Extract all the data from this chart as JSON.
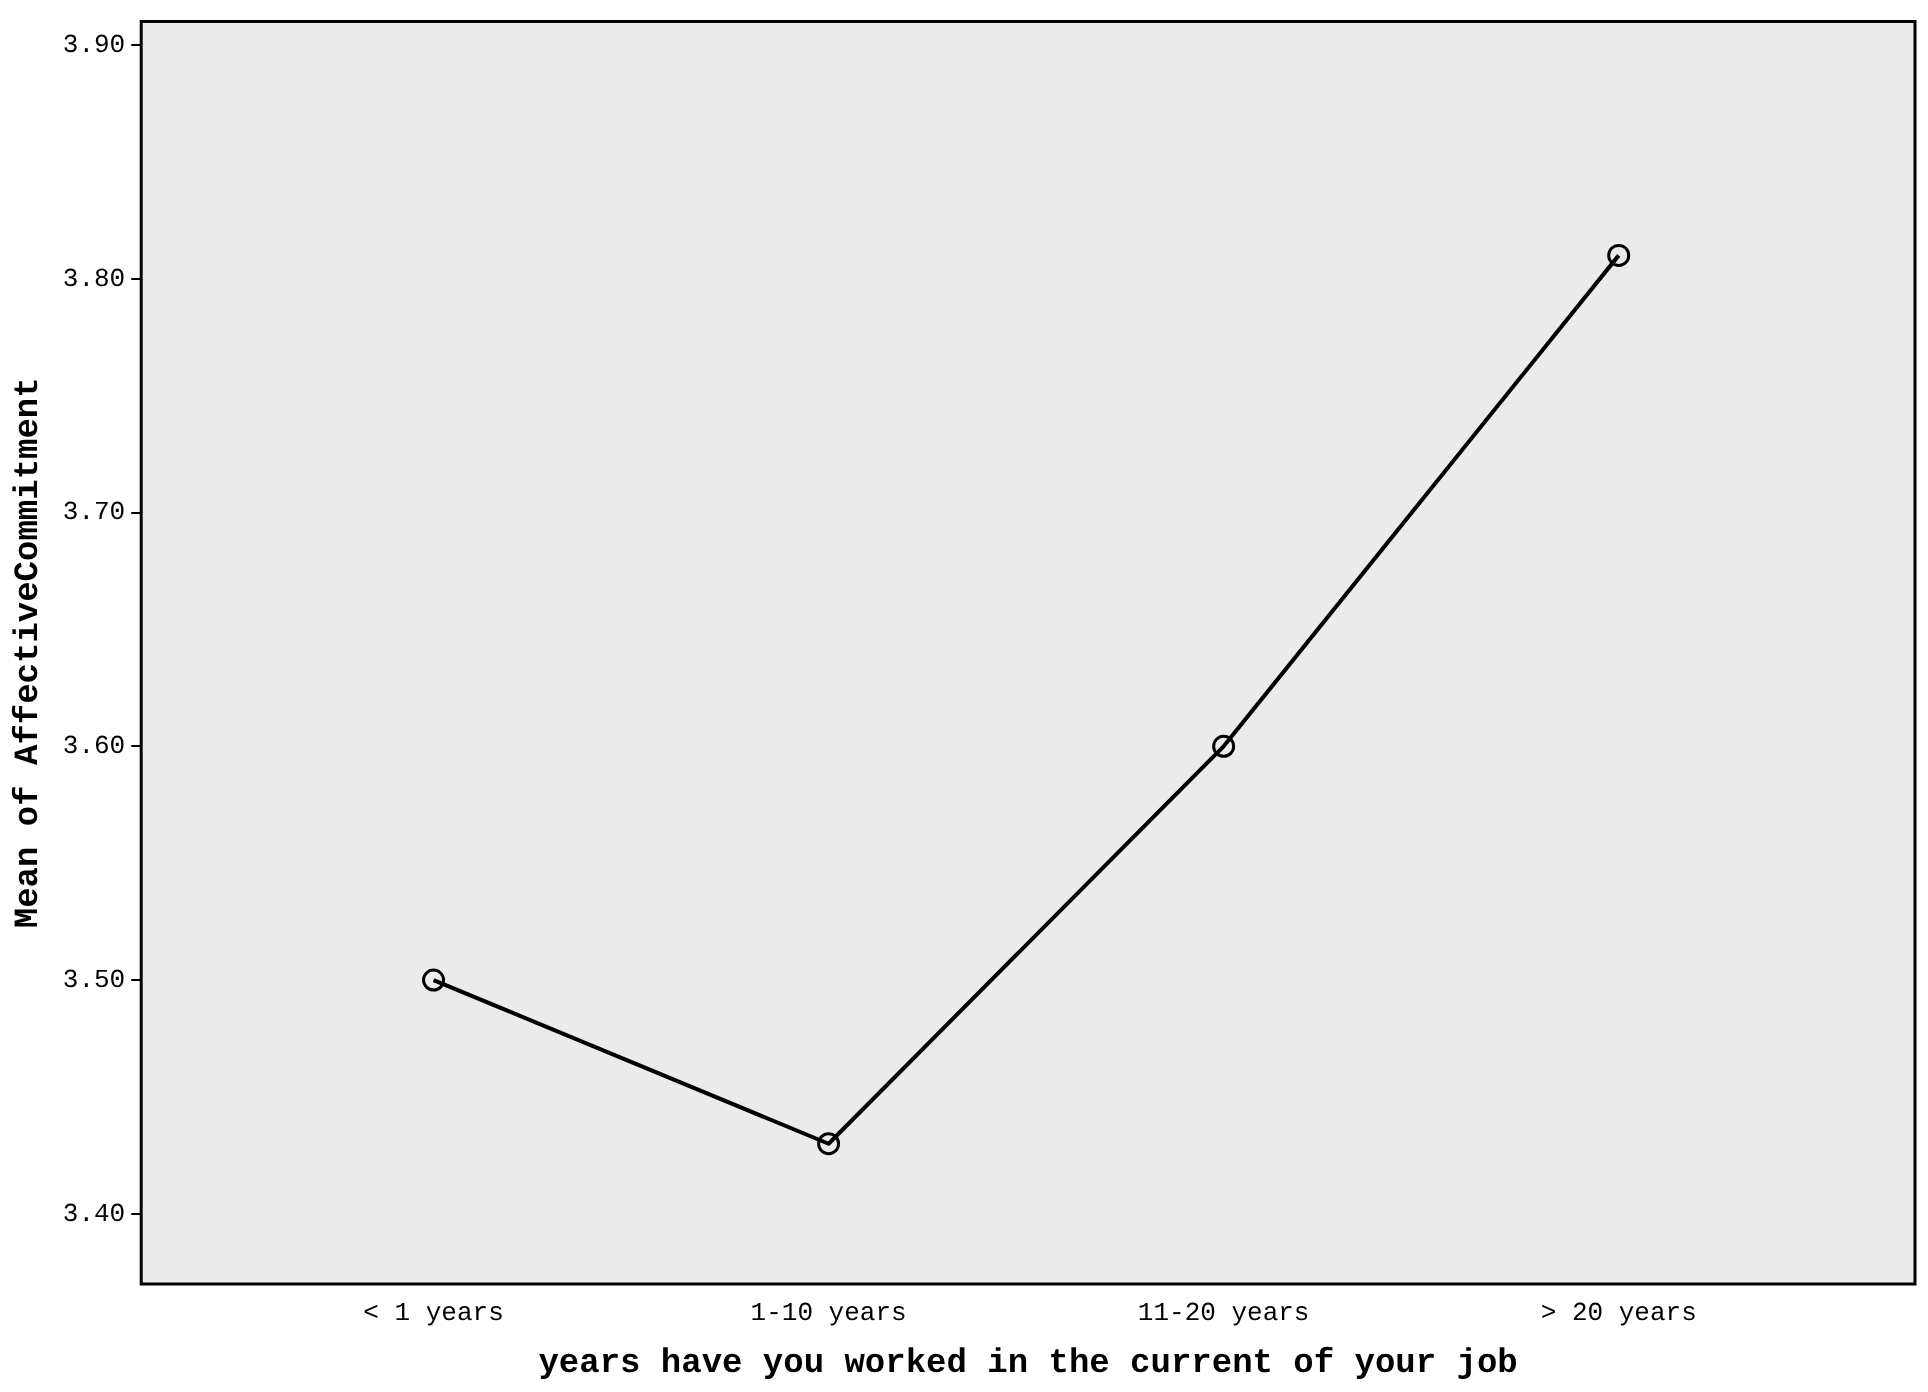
{
  "chart_data": {
    "type": "line",
    "xlabel": "years have you worked in the current of your job",
    "ylabel": "Mean of AffectiveCommitment",
    "categories": [
      "< 1 years",
      "1-10 years",
      "11-20 years",
      "> 20 years"
    ],
    "series": [
      {
        "color": "#000000",
        "values": [
          3.5,
          3.43,
          3.6,
          3.81
        ]
      }
    ],
    "ylim": [
      3.37,
      3.91
    ],
    "yticks": [
      {
        "value": 3.4,
        "label": "3.40"
      },
      {
        "value": 3.5,
        "label": "3.50"
      },
      {
        "value": 3.6,
        "label": "3.60"
      },
      {
        "value": 3.7,
        "label": "3.70"
      },
      {
        "value": 3.8,
        "label": "3.80"
      },
      {
        "value": 3.9,
        "label": "3.90"
      }
    ],
    "grid": false,
    "legend": false,
    "marker": "circle",
    "line_style": "solid"
  }
}
